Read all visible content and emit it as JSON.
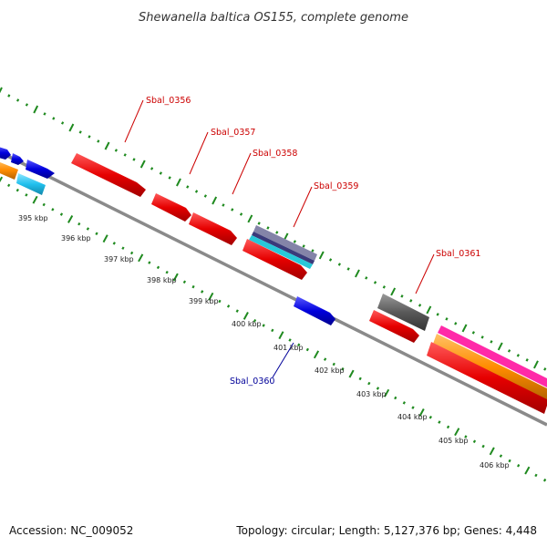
{
  "title": "Shewanella baltica OS155, complete genome",
  "footer": {
    "accession": "Accession: NC_009052",
    "summary": "Topology: circular; Length: 5,127,376 bp; Genes: 4,448"
  },
  "colors": {
    "backbone": "#8a8a8a",
    "tick": "#1f8a1f",
    "label_top": "#cc0000",
    "label_bottom": "#000099"
  },
  "scale_ticks": [
    "395 kbp",
    "396 kbp",
    "397 kbp",
    "398 kbp",
    "399 kbp",
    "400 kbp",
    "401 kbp",
    "402 kbp",
    "403 kbp",
    "404 kbp",
    "405 kbp",
    "406 kbp"
  ],
  "gene_labels": [
    {
      "text": "Sbal_0356",
      "side": "top"
    },
    {
      "text": "Sbal_0357",
      "side": "top"
    },
    {
      "text": "Sbal_0358",
      "side": "top"
    },
    {
      "text": "Sbal_0359",
      "side": "top"
    },
    {
      "text": "Sbal_0361",
      "side": "top"
    },
    {
      "text": "Sbal_0360",
      "side": "bottom"
    }
  ]
}
